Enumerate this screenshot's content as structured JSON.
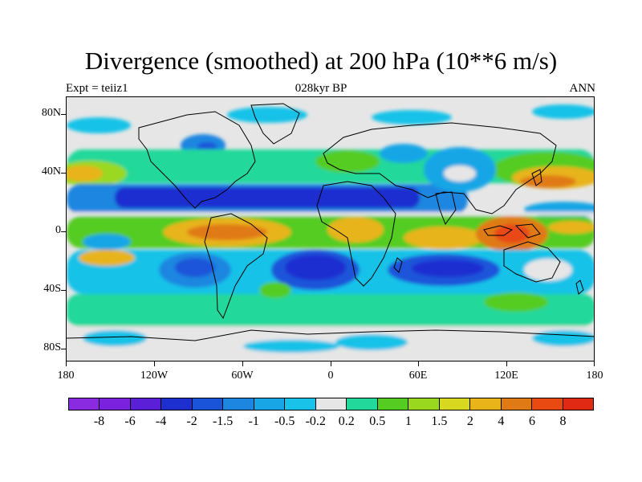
{
  "title": "Divergence (smoothed) at 200 hPa (10**6 m/s)",
  "subtitle_left": "Expt = teiiz1",
  "subtitle_center": "028kyr BP",
  "subtitle_right": "ANN",
  "y_labels": [
    "80N",
    "40N",
    "0",
    "40S",
    "80S"
  ],
  "x_labels": [
    "180",
    "120W",
    "60W",
    "0",
    "60E",
    "120E",
    "180"
  ],
  "colorbar": {
    "colors": [
      "#8a2be2",
      "#7a22dd",
      "#5a1fd6",
      "#1e2fd0",
      "#1a55d9",
      "#1c86e0",
      "#18a6e6",
      "#18c2e8",
      "#e6e6e6",
      "#22d89a",
      "#55cc22",
      "#9ad820",
      "#d8d820",
      "#e8b41a",
      "#e07a14",
      "#e84a12",
      "#e02a14"
    ],
    "labels": [
      "-8",
      "-6",
      "-4",
      "-2",
      "-1.5",
      "-1",
      "-0.5",
      "-0.2",
      "0.2",
      "0.5",
      "1",
      "1.5",
      "2",
      "4",
      "6",
      "8"
    ]
  }
}
